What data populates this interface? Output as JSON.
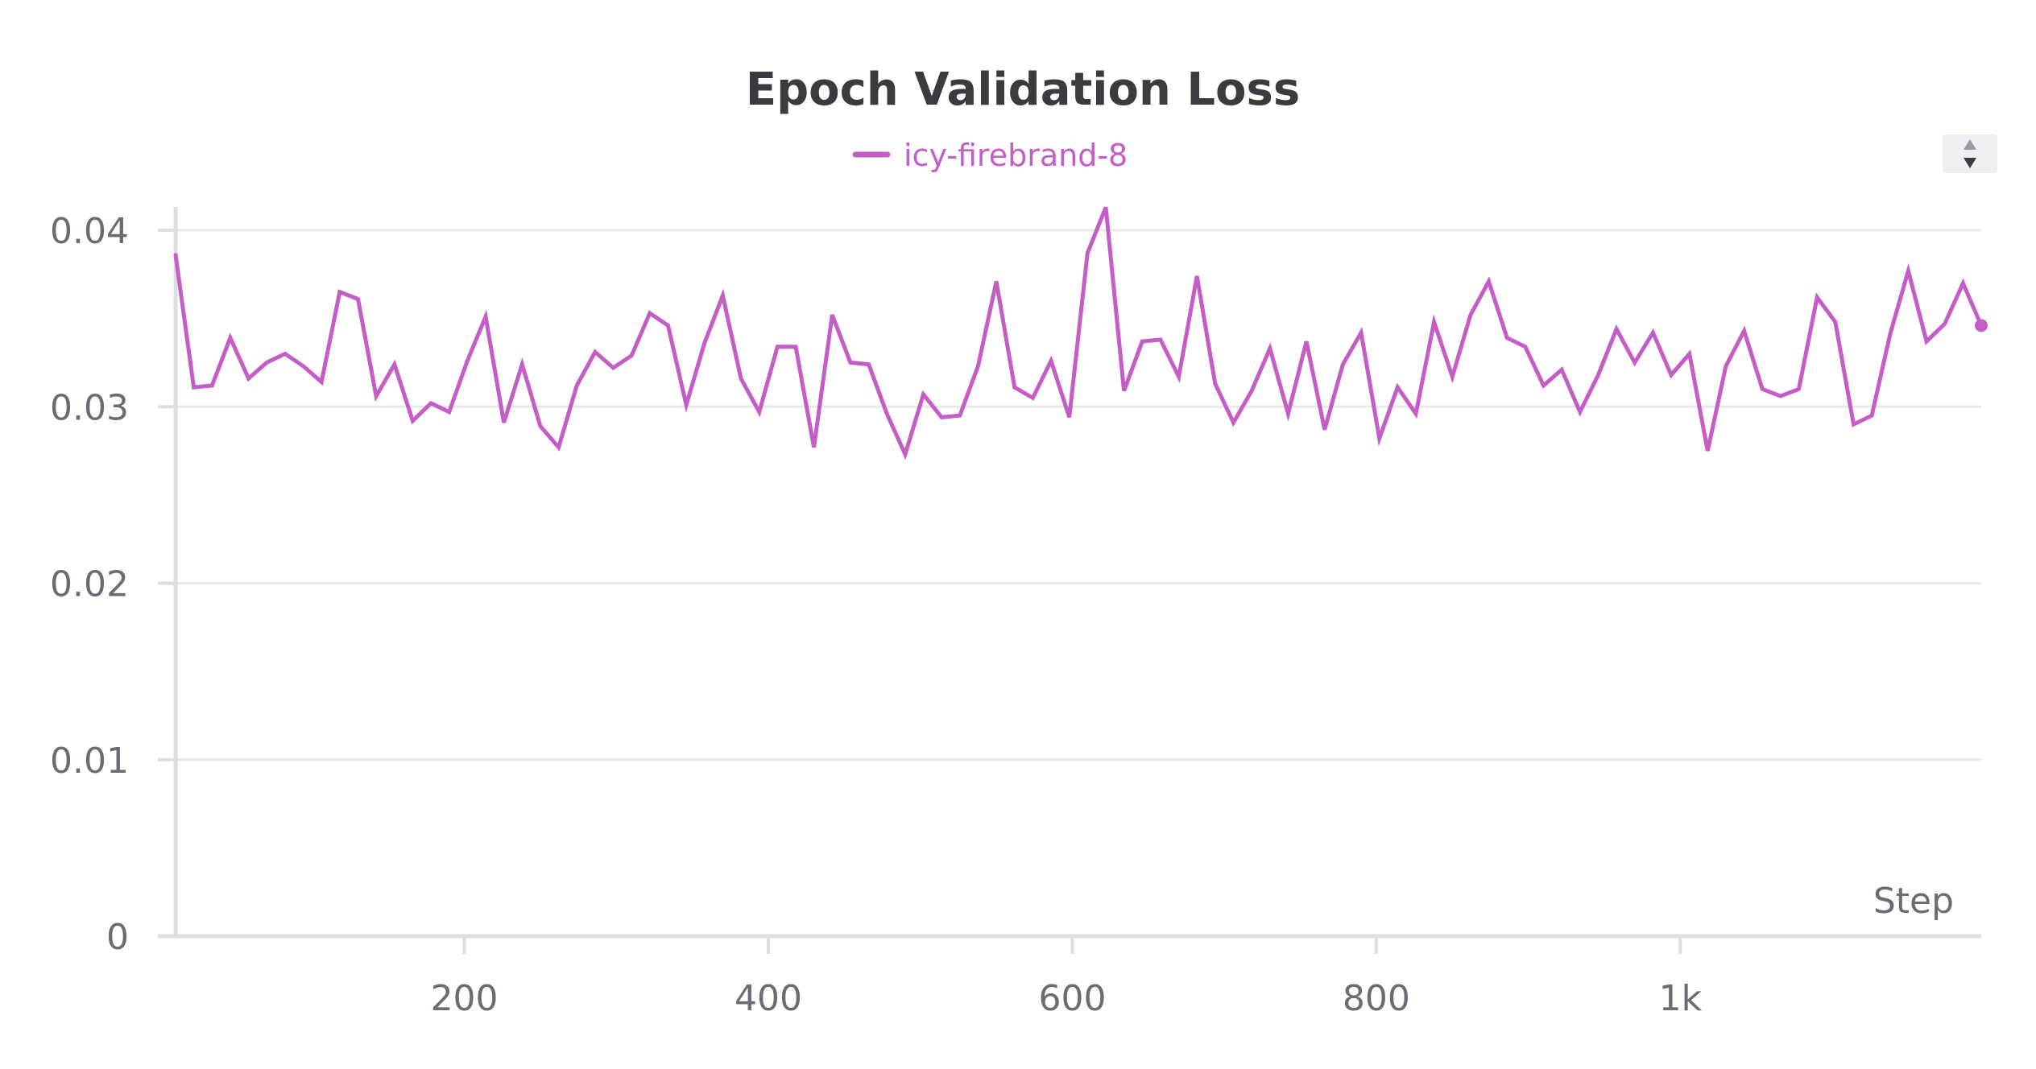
{
  "chart_data": {
    "type": "line",
    "title": "Epoch Validation Loss",
    "xlabel": "Step",
    "ylabel": "",
    "xlim": [
      10,
      1198
    ],
    "ylim": [
      0,
      0.04
    ],
    "x_ticks": [
      200,
      400,
      600,
      800,
      1000
    ],
    "x_tick_labels": [
      "200",
      "400",
      "600",
      "800",
      "1k"
    ],
    "y_ticks": [
      0,
      0.01,
      0.02,
      0.03,
      0.04
    ],
    "y_tick_labels": [
      "0",
      "0.01",
      "0.02",
      "0.03",
      "0.04"
    ],
    "grid": true,
    "legend_position": "top-center",
    "series": [
      {
        "name": "icy-firebrand-8",
        "color": "#c45ec6",
        "x": [
          10,
          22,
          34,
          46,
          58,
          70,
          82,
          94,
          106,
          118,
          130,
          142,
          154,
          166,
          178,
          190,
          202,
          214,
          226,
          238,
          250,
          262,
          274,
          286,
          298,
          310,
          322,
          334,
          346,
          358,
          370,
          382,
          394,
          406,
          418,
          430,
          442,
          454,
          466,
          478,
          490,
          502,
          514,
          526,
          538,
          550,
          562,
          574,
          586,
          598,
          610,
          622,
          634,
          646,
          658,
          670,
          682,
          694,
          706,
          718,
          730,
          742,
          754,
          766,
          778,
          790,
          802,
          814,
          826,
          838,
          850,
          862,
          874,
          886,
          898,
          910,
          922,
          934,
          946,
          958,
          970,
          982,
          994,
          1006,
          1018,
          1030,
          1042,
          1054,
          1066,
          1078,
          1090,
          1102,
          1114,
          1126,
          1138,
          1150,
          1162,
          1174,
          1186,
          1198
        ],
        "values": [
          0.0386,
          0.0311,
          0.0312,
          0.0339,
          0.0316,
          0.0325,
          0.033,
          0.0323,
          0.0314,
          0.0365,
          0.0361,
          0.0306,
          0.0324,
          0.0292,
          0.0302,
          0.0297,
          0.0326,
          0.0351,
          0.0291,
          0.0324,
          0.0289,
          0.0277,
          0.0312,
          0.0331,
          0.0322,
          0.0329,
          0.0353,
          0.0346,
          0.0301,
          0.0336,
          0.0363,
          0.0316,
          0.0297,
          0.0334,
          0.0334,
          0.0277,
          0.0352,
          0.0325,
          0.0324,
          0.0296,
          0.0273,
          0.0307,
          0.0294,
          0.0295,
          0.0323,
          0.0371,
          0.0311,
          0.0305,
          0.0326,
          0.0294,
          0.0387,
          0.0413,
          0.0309,
          0.0337,
          0.0338,
          0.0317,
          0.0374,
          0.0313,
          0.0291,
          0.0309,
          0.0333,
          0.0296,
          0.0337,
          0.0287,
          0.0324,
          0.0342,
          0.0282,
          0.0311,
          0.0296,
          0.0348,
          0.0317,
          0.0352,
          0.0371,
          0.0339,
          0.0334,
          0.0312,
          0.0321,
          0.0297,
          0.0318,
          0.0344,
          0.0325,
          0.0342,
          0.0318,
          0.033,
          0.0275,
          0.0323,
          0.0343,
          0.031,
          0.0306,
          0.031,
          0.0362,
          0.0348,
          0.029,
          0.0295,
          0.0341,
          0.0377,
          0.0337,
          0.0347,
          0.037,
          0.0346
        ]
      }
    ]
  },
  "controls": {
    "scroll_icon": "up-down-triangle-icon"
  }
}
